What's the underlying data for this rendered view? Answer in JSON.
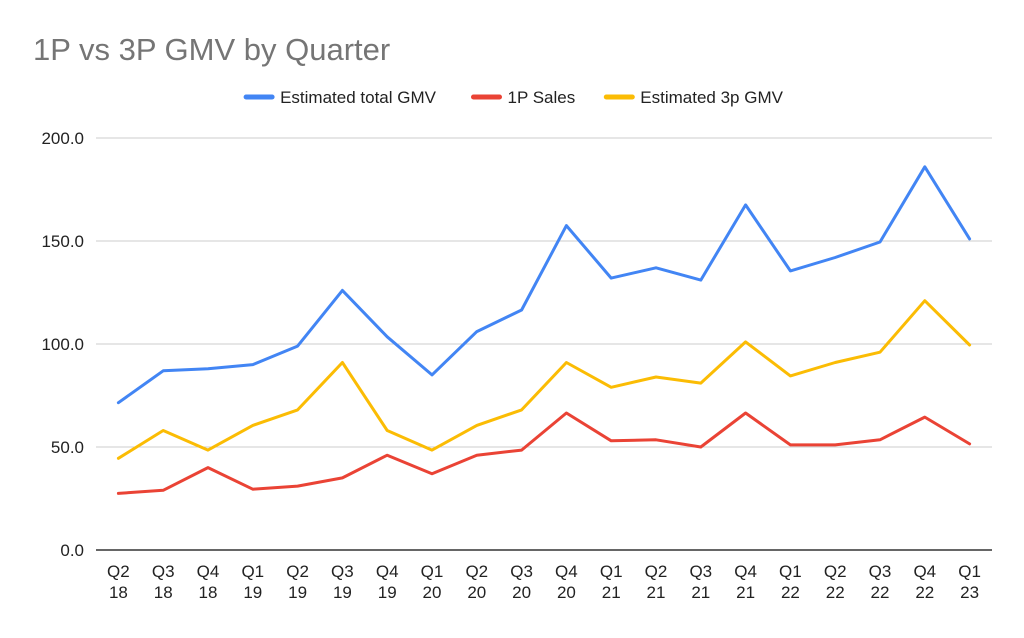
{
  "chart_data": {
    "type": "line",
    "title": "1P vs 3P GMV by Quarter",
    "categories": [
      [
        "Q2",
        "18"
      ],
      [
        "Q3",
        "18"
      ],
      [
        "Q4",
        "18"
      ],
      [
        "Q1",
        "19"
      ],
      [
        "Q2",
        "19"
      ],
      [
        "Q3",
        "19"
      ],
      [
        "Q4",
        "19"
      ],
      [
        "Q1",
        "20"
      ],
      [
        "Q2",
        "20"
      ],
      [
        "Q3",
        "20"
      ],
      [
        "Q4",
        "20"
      ],
      [
        "Q1",
        "21"
      ],
      [
        "Q2",
        "21"
      ],
      [
        "Q3",
        "21"
      ],
      [
        "Q4",
        "21"
      ],
      [
        "Q1",
        "22"
      ],
      [
        "Q2",
        "22"
      ],
      [
        "Q3",
        "22"
      ],
      [
        "Q4",
        "22"
      ],
      [
        "Q1",
        "23"
      ]
    ],
    "ylim": [
      0,
      200
    ],
    "yticks": [
      "0.0",
      "50.0",
      "100.0",
      "150.0",
      "200.0"
    ],
    "ytick_values": [
      0,
      50,
      100,
      150,
      200
    ],
    "grid": true,
    "legend_position": "top-center",
    "series": [
      {
        "name": "Estimated total GMV",
        "color": "#4285f4",
        "values": [
          71.5,
          87,
          88,
          90,
          99,
          126,
          103.5,
          85,
          106,
          116.5,
          157.5,
          132,
          137,
          131,
          167.5,
          135.5,
          142,
          149.5,
          186,
          151
        ]
      },
      {
        "name": "1P Sales",
        "color": "#ea4335",
        "values": [
          27.5,
          29,
          40,
          29.5,
          31,
          35,
          46,
          37,
          46,
          48.5,
          66.5,
          53,
          53.5,
          50,
          66.5,
          51,
          51,
          53.5,
          64.5,
          51.5
        ]
      },
      {
        "name": "Estimated 3p GMV",
        "color": "#fbbc04",
        "values": [
          44.5,
          58,
          48.5,
          60.5,
          68,
          91,
          58,
          48.5,
          60.5,
          68,
          91,
          79,
          84,
          81,
          101,
          84.5,
          91,
          96,
          121,
          99.5
        ]
      }
    ]
  }
}
